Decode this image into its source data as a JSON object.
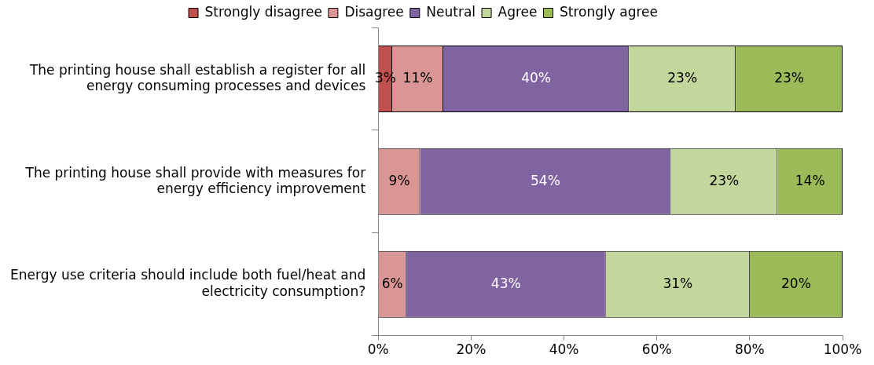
{
  "chart_data": {
    "type": "bar",
    "orientation": "horizontal",
    "stacked": true,
    "legend": "top",
    "categories": [
      "The printing house shall establish a register for all energy consuming processes and devices",
      "The printing house shall provide with measures for energy efficiency improvement",
      "Energy use criteria should include both fuel/heat and electricity consumption?"
    ],
    "series": [
      {
        "name": "Strongly disagree",
        "color": "#c0504d",
        "values": [
          3,
          null,
          null
        ],
        "value_labels": [
          "3%",
          null,
          null
        ]
      },
      {
        "name": "Disagree",
        "color": "#d99694",
        "values": [
          11,
          9,
          6
        ],
        "value_labels": [
          "11%",
          "9%",
          "6%"
        ]
      },
      {
        "name": "Neutral",
        "color": "#8064a2",
        "values": [
          40,
          54,
          43
        ],
        "value_labels": [
          "40%",
          "54%",
          "43%"
        ]
      },
      {
        "name": "Agree",
        "color": "#c3d69b",
        "values": [
          23,
          23,
          31
        ],
        "value_labels": [
          "23%",
          "23%",
          "31%"
        ]
      },
      {
        "name": "Strongly agree",
        "color": "#9bbb59",
        "values": [
          23,
          14,
          20
        ],
        "value_labels": [
          "23%",
          "14%",
          "20%"
        ]
      }
    ],
    "xlim": [
      0,
      100
    ],
    "xticks": [
      {
        "value": 0,
        "label": "0%"
      },
      {
        "value": 20,
        "label": "20%"
      },
      {
        "value": 40,
        "label": "40%"
      },
      {
        "value": 60,
        "label": "60%"
      },
      {
        "value": 80,
        "label": "80%"
      },
      {
        "value": 100,
        "label": "100%"
      }
    ]
  }
}
